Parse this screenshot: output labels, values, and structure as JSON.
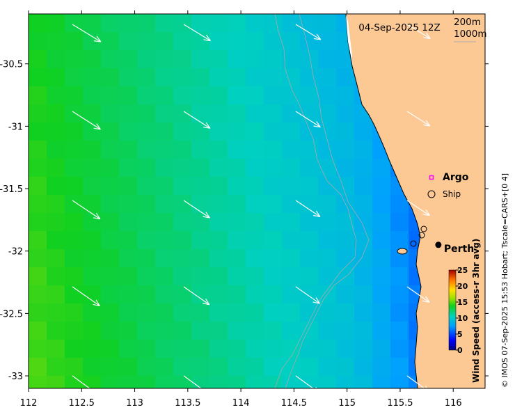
{
  "map": {
    "date_label": "04-Sep-2025 12Z",
    "contours": [
      "200m",
      "1000m"
    ],
    "x_ticks": [
      {
        "value": 112,
        "label": "112"
      },
      {
        "value": 112.5,
        "label": "112.5"
      },
      {
        "value": 113,
        "label": "113"
      },
      {
        "value": 113.5,
        "label": "113.5"
      },
      {
        "value": 114,
        "label": "114"
      },
      {
        "value": 114.5,
        "label": "114.5"
      },
      {
        "value": 115,
        "label": "115"
      },
      {
        "value": 115.5,
        "label": "115.5"
      },
      {
        "value": 116,
        "label": "116"
      }
    ],
    "y_ticks": [
      {
        "value": -30.5,
        "label": "-30.5"
      },
      {
        "value": -31,
        "label": "-31"
      },
      {
        "value": -31.5,
        "label": "-31.5"
      },
      {
        "value": -32,
        "label": "-32"
      },
      {
        "value": -32.5,
        "label": "-32.5"
      },
      {
        "value": -33,
        "label": "-33"
      }
    ],
    "xlim": [
      112,
      116.3
    ],
    "ylim": [
      -33.1,
      -30.1
    ],
    "legend": {
      "argo": "Argo",
      "ship": "Ship"
    },
    "city": {
      "name": "Perth",
      "lon": 115.86,
      "lat": -31.95
    },
    "colorbar": {
      "label": "Wind Speed (access-r 3hr avg)",
      "ticks": [
        "25",
        "20",
        "15",
        "10",
        "5",
        "0"
      ],
      "min": 0,
      "max": 25
    },
    "credit": "© IMOS 07-Sep-2025 15:53 Hobart; Tscale=CARS+[0 4]",
    "colors": {
      "land": "#fcc995",
      "arrow": "#ffffff",
      "argo": "#ff00ff"
    }
  }
}
